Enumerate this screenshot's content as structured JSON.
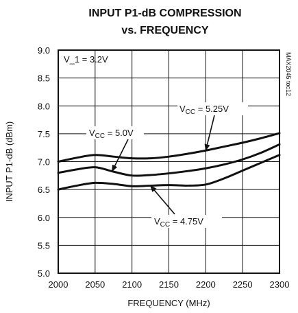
{
  "chart_data": {
    "type": "line",
    "title": "INPUT P1-dB COMPRESSION",
    "subtitle": "vs. FREQUENCY",
    "xlabel": "FREQUENCY (MHz)",
    "ylabel": "INPUT P1-dB (dBm)",
    "xlim": [
      2000,
      2300
    ],
    "ylim": [
      5.0,
      9.0
    ],
    "xticks": [
      2000,
      2050,
      2100,
      2150,
      2200,
      2250,
      2300
    ],
    "yticks": [
      "5.0",
      "5.5",
      "6.0",
      "6.5",
      "7.0",
      "7.5",
      "8.0",
      "8.5",
      "9.0"
    ],
    "grid": true,
    "condition_label": "V_1 = 3.2V",
    "side_label": "MAX2045 toc12",
    "series": [
      {
        "name": "VCC = 5.25V",
        "x": [
          2000,
          2025,
          2050,
          2075,
          2100,
          2125,
          2150,
          2175,
          2200,
          2225,
          2250,
          2275,
          2300
        ],
        "y": [
          7.0,
          7.07,
          7.12,
          7.09,
          7.06,
          7.06,
          7.09,
          7.14,
          7.2,
          7.27,
          7.34,
          7.42,
          7.51
        ]
      },
      {
        "name": "VCC = 5.0V",
        "x": [
          2000,
          2025,
          2050,
          2075,
          2100,
          2125,
          2150,
          2175,
          2200,
          2225,
          2250,
          2275,
          2300
        ],
        "y": [
          6.8,
          6.86,
          6.9,
          6.82,
          6.75,
          6.76,
          6.79,
          6.83,
          6.88,
          6.95,
          7.04,
          7.16,
          7.31
        ]
      },
      {
        "name": "VCC = 4.75V",
        "x": [
          2000,
          2025,
          2050,
          2075,
          2100,
          2125,
          2150,
          2175,
          2200,
          2225,
          2250,
          2275,
          2300
        ],
        "y": [
          6.5,
          6.57,
          6.62,
          6.6,
          6.56,
          6.57,
          6.58,
          6.57,
          6.59,
          6.7,
          6.84,
          6.98,
          7.12
        ]
      }
    ],
    "annotations": [
      {
        "series": "VCC = 5.25V",
        "label_prefix": "V",
        "label_sub": "CC",
        "label_suffix": " = 5.25V"
      },
      {
        "series": "VCC = 5.0V",
        "label_prefix": "V",
        "label_sub": "CC",
        "label_suffix": " = 5.0V"
      },
      {
        "series": "VCC = 4.75V",
        "label_prefix": "V",
        "label_sub": "CC",
        "label_suffix": " = 4.75V"
      }
    ]
  }
}
